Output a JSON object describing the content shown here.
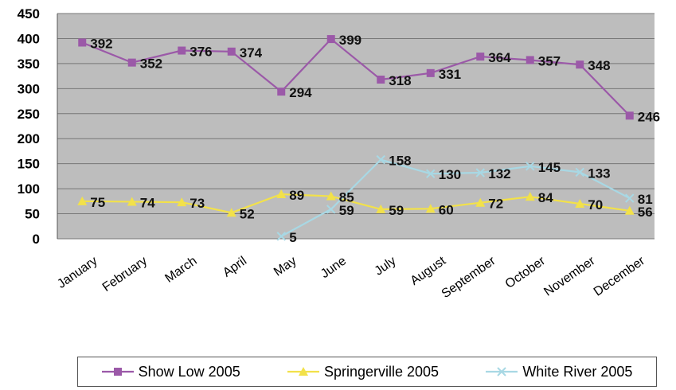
{
  "chart_data": {
    "type": "line",
    "categories": [
      "January",
      "February",
      "March",
      "April",
      "May",
      "June",
      "July",
      "August",
      "September",
      "October",
      "November",
      "December"
    ],
    "ylim": [
      0,
      450
    ],
    "yticks": [
      0,
      50,
      100,
      150,
      200,
      250,
      300,
      350,
      400,
      450
    ],
    "grid": true,
    "legend_position": "bottom",
    "series": [
      {
        "name": "Show Low 2005",
        "color": "#9b59a8",
        "marker": "square",
        "values": [
          392,
          352,
          376,
          374,
          294,
          399,
          318,
          331,
          364,
          357,
          348,
          246
        ],
        "labels": [
          "392",
          "352",
          "376",
          "374",
          "294",
          "399",
          "318",
          "331",
          "364",
          "357",
          "348",
          "246"
        ]
      },
      {
        "name": "Springerville 2005",
        "color": "#f2e14a",
        "marker": "triangle",
        "values": [
          75,
          74,
          73,
          52,
          89,
          85,
          59,
          60,
          72,
          84,
          70,
          56
        ],
        "labels": [
          "75",
          "74",
          "73",
          "52",
          "89",
          "85",
          "59",
          "60",
          "72",
          "84",
          "70",
          "56"
        ]
      },
      {
        "name": "White River 2005",
        "color": "#a8d8e4",
        "marker": "x",
        "values": [
          null,
          null,
          null,
          null,
          5,
          59,
          158,
          130,
          132,
          145,
          133,
          81
        ],
        "labels": [
          "",
          "",
          "",
          "",
          "5",
          "59",
          "158",
          "130",
          "132",
          "145",
          "133",
          "81"
        ]
      }
    ]
  }
}
